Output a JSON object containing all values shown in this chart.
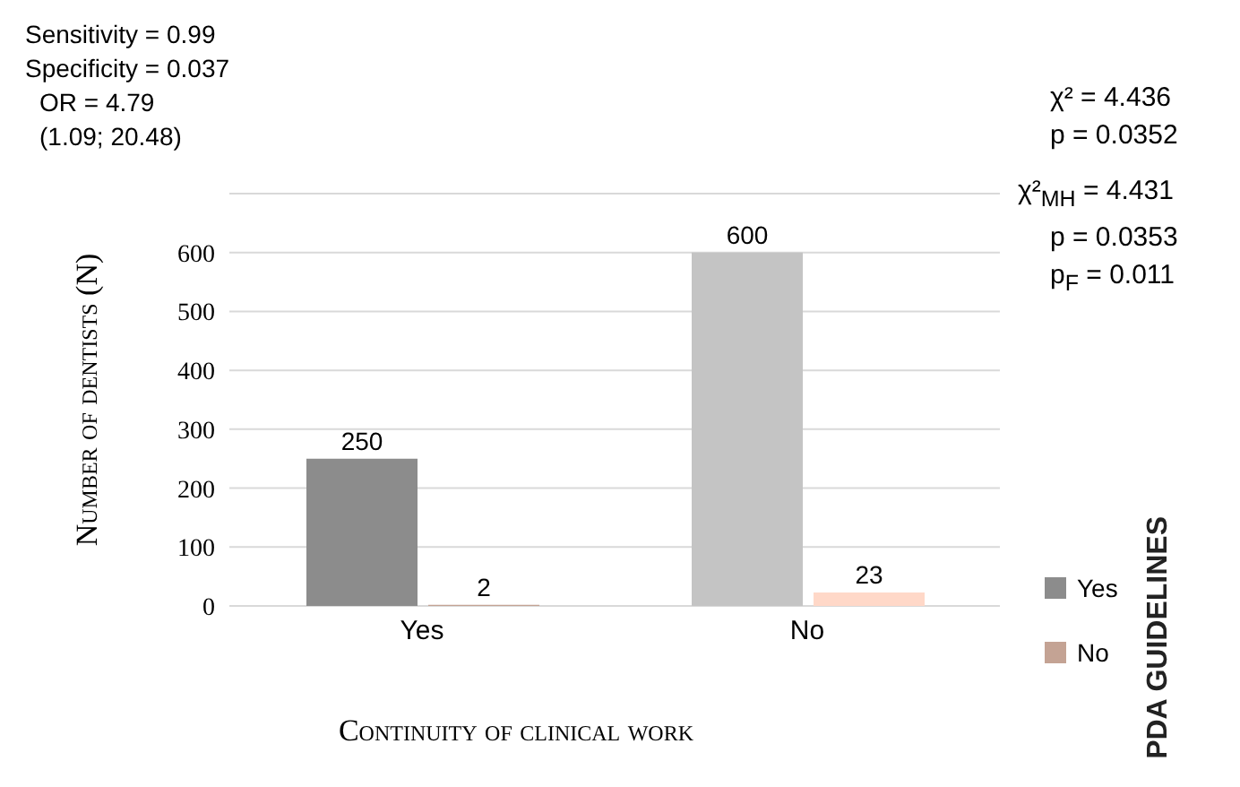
{
  "chart_data": {
    "type": "bar",
    "categories": [
      "Yes",
      "No"
    ],
    "series": [
      {
        "name": "Yes",
        "colors": [
          "#8c8c8c",
          "#c4c4c4"
        ],
        "values": [
          250,
          600
        ]
      },
      {
        "name": "No",
        "colors": [
          "#c4a394",
          "#ffd8c8"
        ],
        "values": [
          2,
          23
        ]
      }
    ],
    "xlabel": "Continuity of clinical work",
    "ylabel": "Number of dentists (N)",
    "legend_title": "PDA GUIDELINES",
    "legend": "right",
    "ylim": [
      0,
      700
    ],
    "yticks": [
      0,
      100,
      200,
      300,
      400,
      500,
      600
    ],
    "grid": "y",
    "data_labels": true,
    "annotations": [
      "Sensitivity = 0.99",
      "Specificity = 0.037",
      "OR = 4.79",
      "(1.09; 20.48)",
      "χ² = 4.436",
      "p = 0.0352",
      "χ²$_{MH}$ = 4.431",
      "p = 0.0353",
      "p$_{F}$ = 0.011"
    ]
  }
}
